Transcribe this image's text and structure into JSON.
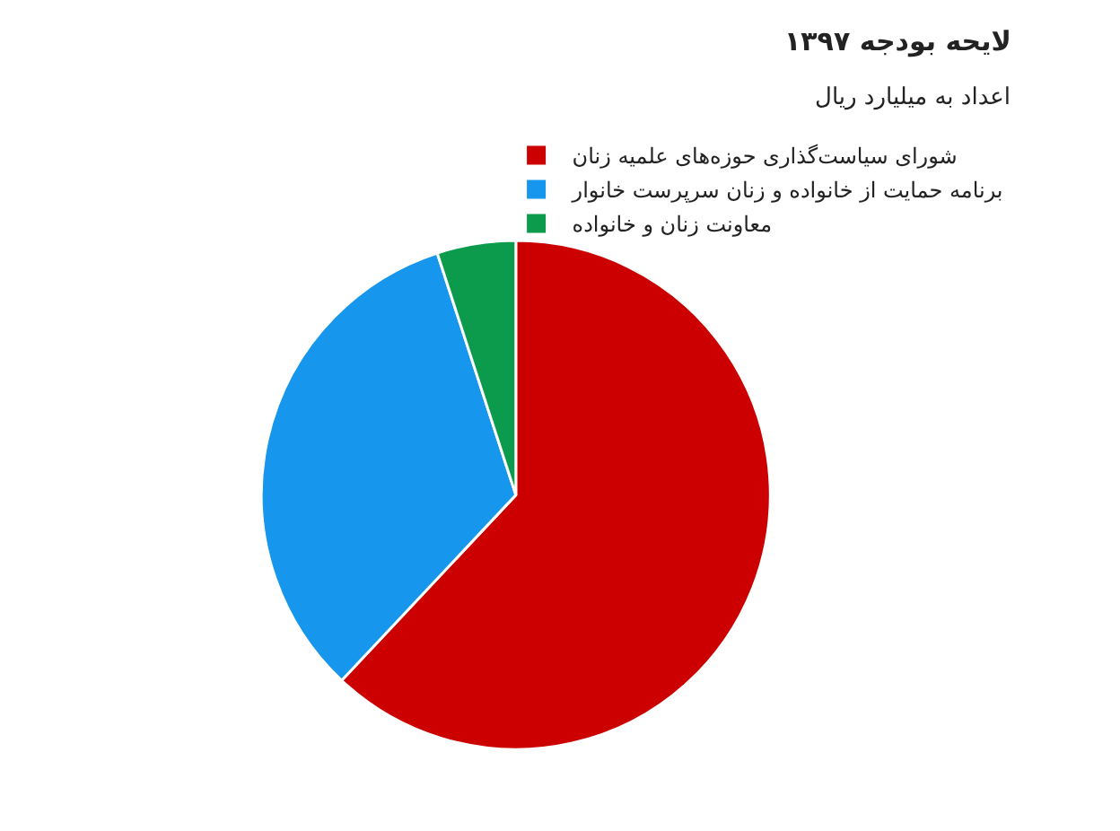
{
  "chart_data": {
    "type": "pie",
    "title": "لایحه بودجه ۱۳۹۷",
    "subtitle": "اعداد به میلیارد ریال",
    "categories": [
      "شورای سیاست‌گذاری حوزه‌های علمیه زنان",
      "برنامه حمایت از خانواده و زنان سرپرست خانوار",
      "معاونت زنان و خانواده"
    ],
    "values": [
      62,
      33,
      5
    ],
    "colors": [
      "#cc0000",
      "#1696ec",
      "#0c9b4d"
    ],
    "legend": "top right"
  }
}
